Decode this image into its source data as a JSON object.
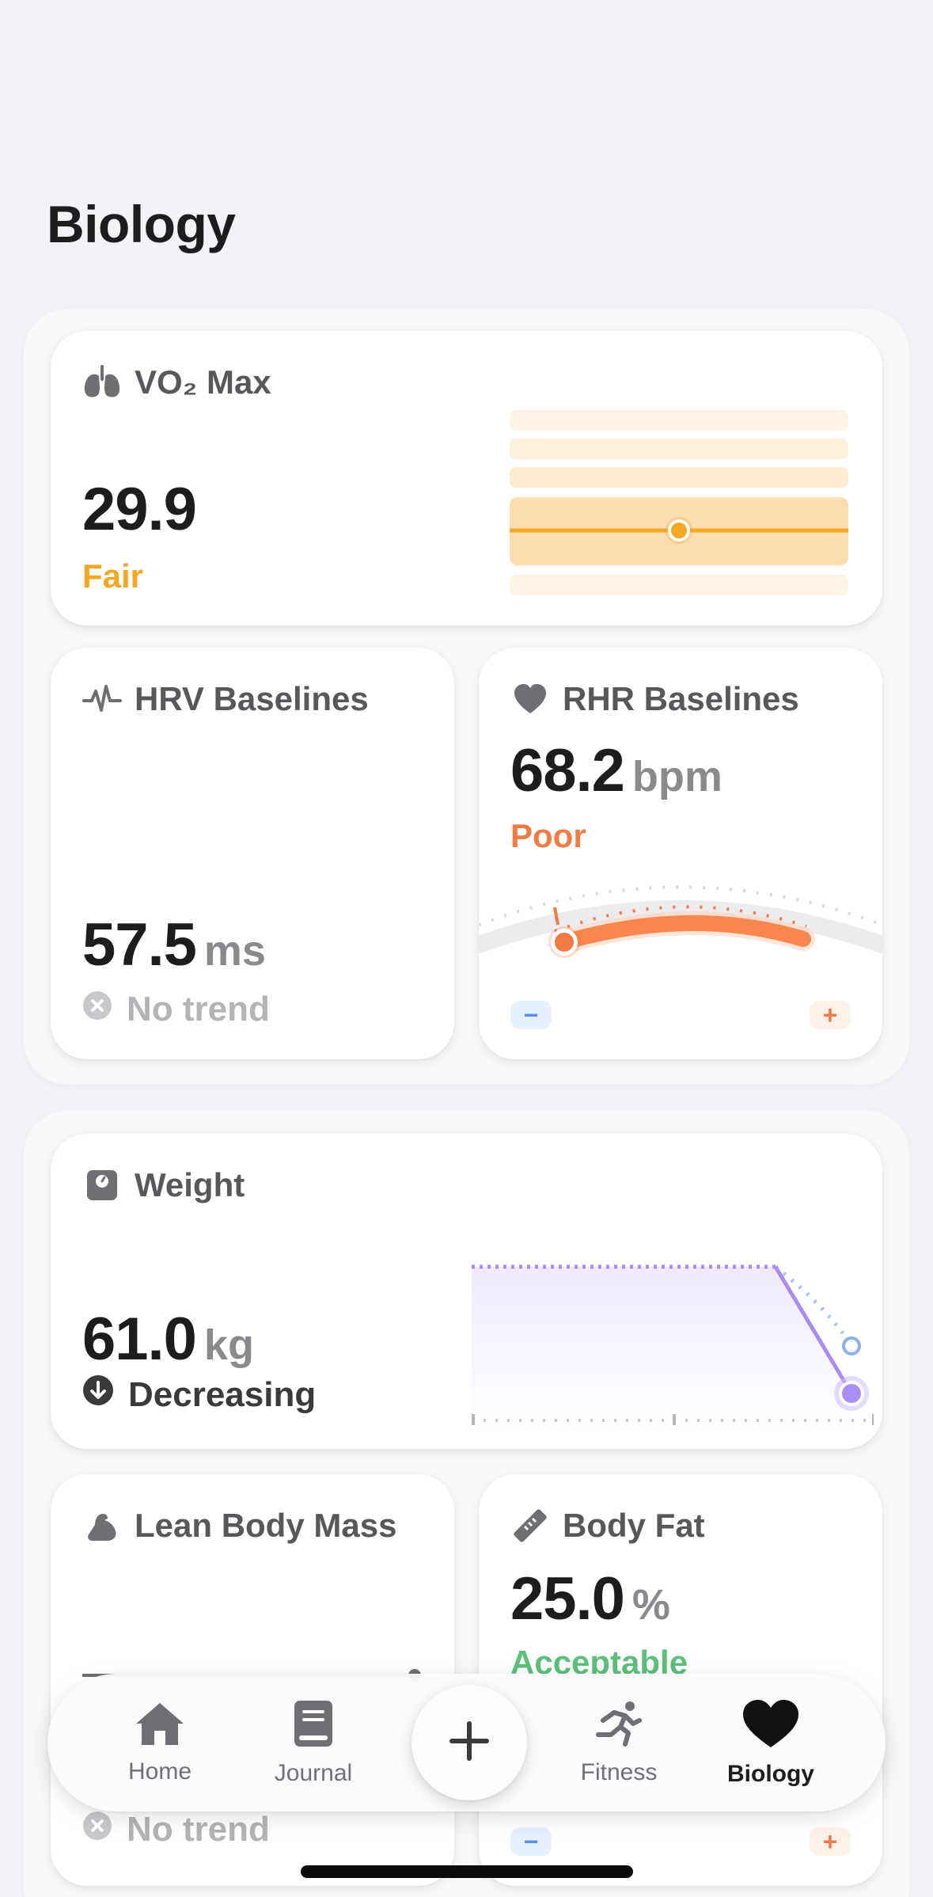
{
  "page": {
    "title": "Biology"
  },
  "colors": {
    "fair": "#f5a623",
    "poor": "#f27a45",
    "acceptable": "#5cbf7a",
    "weight_line": "#a98df5",
    "muted": "#b4b4b8"
  },
  "cards": {
    "vo2": {
      "title": "VO₂ Max",
      "value": "29.9",
      "status": "Fair",
      "icon": "lungs-icon",
      "level": 0.5
    },
    "hrv": {
      "title": "HRV Baselines",
      "value": "57.5",
      "unit": "ms",
      "trend": "No trend",
      "icon": "pulse-icon"
    },
    "rhr": {
      "title": "RHR Baselines",
      "value": "68.2",
      "unit": "bpm",
      "status": "Poor",
      "icon": "heart-icon",
      "minus_label": "−",
      "plus_label": "+"
    },
    "weight": {
      "title": "Weight",
      "value": "61.0",
      "unit": "kg",
      "trend": "Decreasing",
      "icon": "scale-icon"
    },
    "lean": {
      "title": "Lean Body Mass",
      "trend": "No trend",
      "icon": "muscle-icon"
    },
    "bodyfat": {
      "title": "Body Fat",
      "value": "25.0",
      "unit": "%",
      "status": "Acceptable",
      "icon": "ruler-icon",
      "minus_label": "−",
      "plus_label": "+"
    }
  },
  "tabbar": {
    "items": [
      {
        "label": "Home",
        "icon": "house-icon"
      },
      {
        "label": "Journal",
        "icon": "book-icon"
      },
      {
        "label": "Fitness",
        "icon": "runner-icon"
      },
      {
        "label": "Biology",
        "icon": "heart-icon",
        "active": true
      }
    ],
    "add_icon": "plus-icon"
  }
}
